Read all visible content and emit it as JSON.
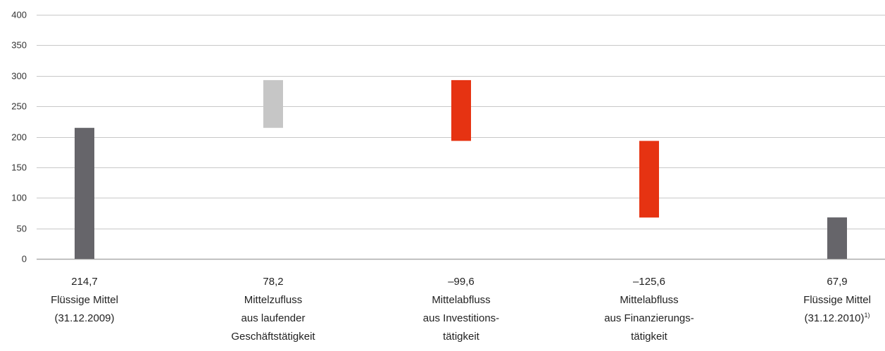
{
  "chart_data": {
    "type": "bar",
    "subtype": "waterfall",
    "title": "",
    "xlabel": "",
    "ylabel": "",
    "ylim": [
      0,
      400
    ],
    "yticks": [
      0,
      50,
      100,
      150,
      200,
      250,
      300,
      350,
      400
    ],
    "grid": true,
    "legend": "none",
    "colors": {
      "total": "#66656a",
      "increase": "#c6c6c6",
      "decrease": "#e63312",
      "grid": "#c8c8c8",
      "axis": "#aaaaaa"
    },
    "bars": [
      {
        "value_label": "214,7",
        "label_lines": [
          "Flüssige Mittel",
          "(31.12.2009)"
        ],
        "footnote": "",
        "kind": "total",
        "start": 0,
        "end": 214.7
      },
      {
        "value_label": "78,2",
        "label_lines": [
          "Mittelzufluss",
          "aus laufender",
          "Geschäftstätigkeit"
        ],
        "footnote": "",
        "kind": "increase",
        "start": 214.7,
        "end": 292.9
      },
      {
        "value_label": "–99,6",
        "label_lines": [
          "Mittelabfluss",
          "aus Investitions-",
          "tätigkeit"
        ],
        "footnote": "",
        "kind": "decrease",
        "start": 292.9,
        "end": 193.3
      },
      {
        "value_label": "–125,6",
        "label_lines": [
          "Mittelabfluss",
          "aus Finanzierungs-",
          "tätigkeit"
        ],
        "footnote": "",
        "kind": "decrease",
        "start": 193.3,
        "end": 67.7
      },
      {
        "value_label": "67,9",
        "label_lines": [
          "Flüssige Mittel",
          "(31.12.2010)"
        ],
        "footnote": "1)",
        "kind": "total",
        "start": 0,
        "end": 67.9
      }
    ]
  }
}
